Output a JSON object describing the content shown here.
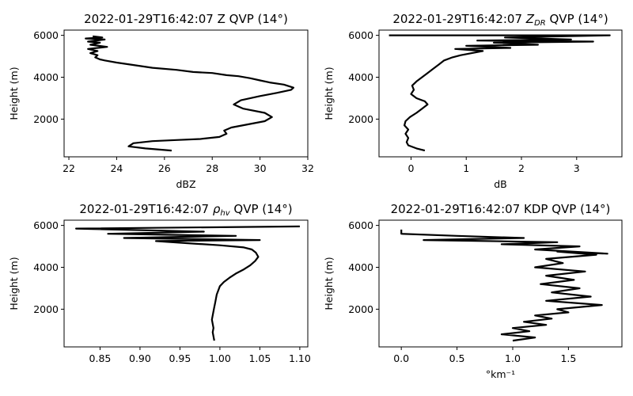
{
  "chart_data": [
    {
      "type": "line",
      "title": "2022-01-29T16:42:07 Z QVP (14°)",
      "title_parts": [
        {
          "text": "2022-01-29T16:42:07 Z QVP (14°)"
        }
      ],
      "xlabel": "dBZ",
      "ylabel": "Height (m)",
      "xlim": [
        21.8,
        32.0
      ],
      "ylim": [
        200,
        6250
      ],
      "xticks": [
        22,
        24,
        26,
        28,
        30,
        32
      ],
      "xtick_labels": [
        "22",
        "24",
        "26",
        "28",
        "30",
        "32"
      ],
      "yticks": [
        2000,
        4000,
        6000
      ],
      "ytick_labels": [
        "2000",
        "4000",
        "6000"
      ],
      "grid": false,
      "series": [
        {
          "color": "#000000",
          "x": [
            26.3,
            25.2,
            24.5,
            24.7,
            25.5,
            26.5,
            27.5,
            28.3,
            28.6,
            28.5,
            28.8,
            29.5,
            30.2,
            30.5,
            30.2,
            29.3,
            28.9,
            29.2,
            30.0,
            30.7,
            31.3,
            31.4,
            31.0,
            30.4,
            30.0,
            29.6,
            29.1,
            28.6,
            28.0,
            27.2,
            26.5,
            25.5,
            24.6,
            24.0,
            23.5,
            23.3,
            23.1,
            23.2,
            22.9,
            23.2,
            22.8,
            23.6,
            22.9,
            23.3,
            22.8,
            23.5,
            22.7,
            23.4,
            23.0
          ],
          "y": [
            500,
            600,
            700,
            850,
            950,
            1000,
            1050,
            1150,
            1300,
            1450,
            1600,
            1750,
            1900,
            2100,
            2300,
            2500,
            2700,
            2900,
            3100,
            3250,
            3400,
            3500,
            3650,
            3750,
            3850,
            3950,
            4050,
            4100,
            4200,
            4250,
            4350,
            4450,
            4600,
            4700,
            4800,
            4850,
            4950,
            5050,
            5150,
            5250,
            5350,
            5450,
            5550,
            5650,
            5700,
            5800,
            5850,
            5900,
            5950
          ]
        }
      ]
    },
    {
      "type": "line",
      "title": "2022-01-29T16:42:07 ZDR QVP (14°)",
      "title_parts": [
        {
          "text": "2022-01-29T16:42:07 "
        },
        {
          "text": "Z",
          "italic": true
        },
        {
          "text": "DR",
          "italic": true,
          "sub": true
        },
        {
          "text": " QVP (14°)"
        }
      ],
      "xlabel": "dB",
      "ylabel": "Height (m)",
      "xlim": [
        -0.58,
        3.82
      ],
      "ylim": [
        200,
        6250
      ],
      "xticks": [
        0,
        1,
        2,
        3
      ],
      "xtick_labels": [
        "0",
        "1",
        "2",
        "3"
      ],
      "yticks": [
        2000,
        4000,
        6000
      ],
      "ytick_labels": [
        "2000",
        "4000",
        "6000"
      ],
      "grid": false,
      "series": [
        {
          "color": "#000000",
          "x": [
            0.25,
            0.1,
            -0.05,
            -0.08,
            -0.05,
            -0.1,
            -0.05,
            -0.12,
            -0.1,
            -0.02,
            0.1,
            0.2,
            0.3,
            0.25,
            0.1,
            0.0,
            0.05,
            0.02,
            0.1,
            0.2,
            0.3,
            0.4,
            0.5,
            0.6,
            0.75,
            0.9,
            1.1,
            1.3,
            0.8,
            1.8,
            1.0,
            2.3,
            1.5,
            3.3,
            1.2,
            2.9,
            1.7,
            3.6,
            -0.4
          ],
          "y": [
            500,
            600,
            750,
            900,
            1100,
            1300,
            1500,
            1700,
            1900,
            2100,
            2300,
            2500,
            2700,
            2850,
            3000,
            3200,
            3400,
            3600,
            3800,
            4000,
            4200,
            4400,
            4600,
            4800,
            4950,
            5050,
            5150,
            5250,
            5350,
            5400,
            5500,
            5550,
            5650,
            5700,
            5750,
            5800,
            5900,
            6000,
            6000
          ]
        }
      ]
    },
    {
      "type": "line",
      "title": "2022-01-29T16:42:07 ρhv QVP (14°)",
      "title_parts": [
        {
          "text": "2022-01-29T16:42:07 "
        },
        {
          "text": "ρ",
          "italic": true
        },
        {
          "text": "hv",
          "italic": true,
          "sub": true
        },
        {
          "text": " QVP (14°)"
        }
      ],
      "xlabel": "",
      "ylabel": "Height (m)",
      "xlim": [
        0.805,
        1.11
      ],
      "ylim": [
        200,
        6250
      ],
      "xticks": [
        0.85,
        0.9,
        0.95,
        1.0,
        1.05,
        1.1
      ],
      "xtick_labels": [
        "0.85",
        "0.90",
        "0.95",
        "1.00",
        "1.05",
        "1.10"
      ],
      "yticks": [
        2000,
        4000,
        6000
      ],
      "ytick_labels": [
        "2000",
        "4000",
        "6000"
      ],
      "grid": false,
      "series": [
        {
          "color": "#000000",
          "x": [
            0.993,
            0.992,
            0.991,
            0.992,
            0.991,
            0.99,
            0.991,
            0.992,
            0.993,
            0.994,
            0.995,
            0.996,
            0.998,
            1.0,
            1.005,
            1.012,
            1.02,
            1.03,
            1.038,
            1.044,
            1.048,
            1.045,
            1.04,
            1.03,
            1.0,
            0.96,
            0.92,
            1.05,
            0.88,
            1.02,
            0.86,
            0.98,
            0.82,
            1.1
          ],
          "y": [
            500,
            700,
            900,
            1100,
            1300,
            1500,
            1700,
            1900,
            2100,
            2300,
            2500,
            2700,
            2900,
            3100,
            3300,
            3500,
            3700,
            3900,
            4100,
            4300,
            4500,
            4700,
            4850,
            4950,
            5050,
            5150,
            5250,
            5300,
            5400,
            5500,
            5600,
            5700,
            5850,
            5950
          ]
        }
      ]
    },
    {
      "type": "line",
      "title": "2022-01-29T16:42:07 KDP QVP (14°)",
      "title_parts": [
        {
          "text": "2022-01-29T16:42:07 KDP QVP (14°)"
        }
      ],
      "xlabel": "°km⁻¹",
      "ylabel": "Height (m)",
      "xlim": [
        -0.2,
        1.98
      ],
      "ylim": [
        200,
        6250
      ],
      "xticks": [
        0.0,
        0.5,
        1.0,
        1.5
      ],
      "xtick_labels": [
        "0.0",
        "0.5",
        "1.0",
        "1.5"
      ],
      "yticks": [
        2000,
        4000,
        6000
      ],
      "ytick_labels": [
        "2000",
        "4000",
        "6000"
      ],
      "grid": false,
      "series": [
        {
          "color": "#000000",
          "x": [
            1.0,
            1.2,
            0.9,
            1.15,
            1.0,
            1.3,
            1.1,
            1.35,
            1.2,
            1.5,
            1.4,
            1.8,
            1.3,
            1.7,
            1.35,
            1.6,
            1.25,
            1.55,
            1.3,
            1.65,
            1.2,
            1.45,
            1.3,
            1.75,
            1.4,
            1.85,
            1.2,
            1.6,
            0.9,
            1.4,
            0.2,
            1.1,
            0.5,
            0.0,
            0.0
          ],
          "y": [
            500,
            650,
            800,
            950,
            1100,
            1250,
            1400,
            1550,
            1700,
            1850,
            2000,
            2200,
            2400,
            2600,
            2800,
            3000,
            3200,
            3400,
            3600,
            3800,
            4000,
            4200,
            4400,
            4600,
            4750,
            4650,
            4850,
            5000,
            5100,
            5200,
            5300,
            5400,
            5500,
            5600,
            5800
          ]
        }
      ]
    }
  ]
}
